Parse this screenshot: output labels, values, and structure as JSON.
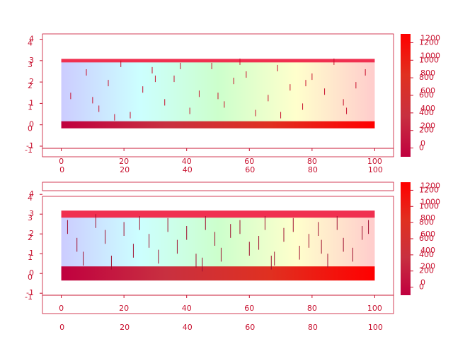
{
  "chart_data": [
    {
      "type": "image",
      "xlim": [
        -6,
        106
      ],
      "ylim": [
        -1.1,
        4.25
      ],
      "xticks": [
        0,
        20,
        40,
        60,
        80,
        100
      ],
      "yticks": [
        -1,
        0,
        1,
        2,
        3,
        4
      ],
      "image_colors": [
        "#ccccff",
        "#ccffff",
        "#ccffcc",
        "#ffffcc",
        "#ffcccc"
      ],
      "segment_color": "#c8102e",
      "segment_length": 0.3,
      "x": [
        3,
        8,
        12,
        15,
        19,
        22,
        26,
        29,
        33,
        36,
        41,
        44,
        48,
        52,
        55,
        59,
        62,
        66,
        69,
        73,
        77,
        80,
        84,
        87,
        91,
        94,
        97,
        10,
        30,
        50,
        70,
        90,
        17,
        38,
        57,
        78
      ],
      "values": [
        1.2,
        2.3,
        0.6,
        1.8,
        2.7,
        0.3,
        1.5,
        2.4,
        0.9,
        2.0,
        0.5,
        1.3,
        2.6,
        0.8,
        1.9,
        2.2,
        0.4,
        1.1,
        2.5,
        1.6,
        0.7,
        2.1,
        1.4,
        2.8,
        0.5,
        1.7,
        2.3,
        1.0,
        2.0,
        1.2,
        0.3,
        0.9,
        0.2,
        2.6,
        2.8,
        1.8
      ],
      "colorbar": {
        "lim": [
          -100,
          1300
        ],
        "ticks": [
          0,
          200,
          400,
          600,
          800,
          1000,
          1200
        ],
        "colors": [
          "#c0003f",
          "#c83040",
          "#e03020",
          "#ff0000"
        ]
      }
    },
    {
      "type": "image",
      "xlim": [
        -6,
        106
      ],
      "ylim": [
        -1.1,
        3.9
      ],
      "xticks": [
        0,
        20,
        40,
        60,
        80,
        100
      ],
      "yticks": [
        -1,
        0,
        1,
        2,
        3,
        4
      ],
      "image_colors": [
        "#ccccff",
        "#ccffff",
        "#ccffcc",
        "#ffffcc",
        "#ffcccc"
      ],
      "segment_color": "#a01030",
      "segment_length": 0.7,
      "x": [
        2,
        5,
        7,
        11,
        14,
        16,
        20,
        23,
        25,
        28,
        31,
        34,
        37,
        40,
        43,
        46,
        49,
        51,
        54,
        57,
        60,
        63,
        65,
        68,
        71,
        74,
        76,
        79,
        82,
        85,
        88,
        90,
        93,
        96,
        98,
        45,
        67,
        83
      ],
      "values": [
        2.0,
        1.1,
        0.4,
        2.3,
        1.5,
        0.2,
        1.9,
        0.8,
        2.2,
        1.3,
        0.5,
        2.1,
        1.0,
        1.7,
        0.3,
        2.2,
        1.4,
        0.6,
        1.8,
        2.0,
        0.9,
        1.2,
        2.2,
        0.4,
        1.6,
        2.1,
        0.7,
        1.3,
        1.9,
        0.3,
        2.2,
        1.1,
        0.6,
        1.7,
        2.0,
        0.1,
        0.2,
        1.0
      ],
      "colorbar": {
        "lim": [
          -100,
          1300
        ],
        "ticks": [
          0,
          200,
          400,
          600,
          800,
          1000,
          1200
        ],
        "colors": [
          "#c0003f",
          "#c83040",
          "#e03020",
          "#ff0000"
        ]
      }
    }
  ]
}
